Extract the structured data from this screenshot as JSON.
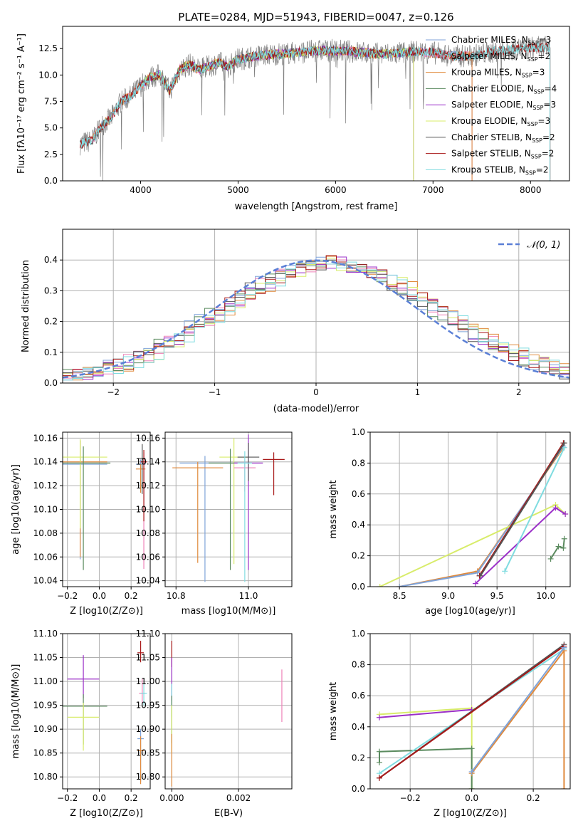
{
  "title": "PLATE=0284, MJD=51943, FIBERID=0047, z=0.126",
  "colors": {
    "chabrier_miles": "#7fa3d9",
    "salpeter_miles": "#ee82b8",
    "kroupa_miles": "#e08a3c",
    "chabrier_elodie": "#5a8a5e",
    "salpeter_elodie": "#9b2fc8",
    "kroupa_elodie": "#d8ec6a",
    "chabrier_stelib": "#555555",
    "salpeter_stelib": "#a81818",
    "kroupa_stelib": "#7fdce0",
    "normal": "#5a7fd6",
    "grid": "#b0b0b0"
  },
  "chart_data": [
    {
      "id": "spectrum",
      "type": "line",
      "title": "PLATE=0284, MJD=51943, FIBERID=0047, z=0.126",
      "xlabel": "wavelength [Angstrom, rest frame]",
      "ylabel": "Flux [f_λ10^-17 erg cm^-2 s^-1 A^-1]",
      "xlim": [
        3200,
        8400
      ],
      "ylim": [
        0,
        14.6
      ],
      "xticks": [
        "4000",
        "5000",
        "6000",
        "7000",
        "8000"
      ],
      "yticks": [
        "0.0",
        "2.5",
        "5.0",
        "7.5",
        "10.0",
        "12.5"
      ],
      "grid": false,
      "legend_position": "right",
      "data_curve": {
        "x": [
          3380,
          3500,
          3600,
          3700,
          3800,
          3900,
          4000,
          4100,
          4200,
          4300,
          4400,
          4500,
          4600,
          4700,
          4800,
          4900,
          5000,
          5200,
          5400,
          5600,
          5800,
          6000,
          6200,
          6400,
          6600,
          6800,
          7000,
          7200,
          7400,
          7600,
          7800,
          8000,
          8200
        ],
        "y": [
          3.5,
          3.8,
          5.2,
          6.0,
          7.5,
          8.0,
          9.0,
          9.8,
          10.0,
          8.5,
          10.5,
          11.0,
          10.5,
          10.8,
          11.2,
          10.8,
          11.5,
          11.8,
          12.0,
          12.1,
          12.3,
          12.3,
          12.2,
          12.0,
          12.0,
          12.2,
          12.1,
          11.8,
          11.8,
          12.2,
          12.4,
          12.6,
          12.6
        ]
      },
      "legend": [
        "Chabrier MILES, N_SSP=3",
        "Salpeter MILES, N_SSP=2",
        "Kroupa MILES, N_SSP=3",
        "Chabrier ELODIE, N_SSP=4",
        "Salpeter ELODIE, N_SSP=3",
        "Kroupa ELODIE, N_SSP=3",
        "Chabrier STELIB, N_SSP=2",
        "Salpeter STELIB, N_SSP=2",
        "Kroupa STELIB, N_SSP=2"
      ]
    },
    {
      "id": "residuals",
      "type": "line",
      "xlabel": "(data-model)/error",
      "ylabel": "Normed distribution",
      "xlim": [
        -2.5,
        2.5
      ],
      "ylim": [
        0,
        0.5
      ],
      "xticks": [
        "−2",
        "−1",
        "0",
        "1",
        "2"
      ],
      "yticks": [
        "0.0",
        "0.1",
        "0.2",
        "0.3",
        "0.4"
      ],
      "grid": true,
      "legend_label": "N(0,1)",
      "legend_position": "top-right"
    },
    {
      "id": "age_vs_z",
      "type": "scatter",
      "xlabel": "Z [log10(Z/Z⊙)]",
      "ylabel": "age [log10(age/yr)]",
      "xlim": [
        -0.23,
        0.32
      ],
      "ylim": [
        10.035,
        10.165
      ],
      "xticks": [
        "−0.2",
        "0.0",
        "0.2"
      ],
      "yticks": [
        "10.04",
        "10.06",
        "10.08",
        "10.10",
        "10.12",
        "10.14",
        "10.16"
      ],
      "grid": true,
      "points": [
        {
          "x": -0.12,
          "y": 10.138,
          "xerr": 0.17,
          "yerr_lo": 0.08,
          "yerr_hi": 0.02,
          "color": "chabrier_miles"
        },
        {
          "x": -0.12,
          "y": 10.14,
          "xerr": 0.17,
          "yerr_lo": 0.08,
          "yerr_hi": 0.018,
          "color": "kroupa_miles"
        },
        {
          "x": -0.12,
          "y": 10.144,
          "xerr": 0.17,
          "yerr_lo": 0.06,
          "yerr_hi": 0.015,
          "color": "kroupa_elodie"
        },
        {
          "x": -0.1,
          "y": 10.139,
          "xerr": 0.17,
          "yerr_lo": 0.09,
          "yerr_hi": 0.014,
          "color": "chabrier_elodie"
        },
        {
          "x": 0.26,
          "y": 10.138,
          "xerr": 0.03,
          "yerr_lo": 0.02,
          "yerr_hi": 0.004,
          "color": "chabrier_miles"
        },
        {
          "x": 0.26,
          "y": 10.134,
          "xerr": 0.03,
          "yerr_lo": 0.02,
          "yerr_hi": 0.004,
          "color": "kroupa_miles"
        },
        {
          "x": 0.28,
          "y": 10.14,
          "xerr": 0.02,
          "yerr_lo": 0.09,
          "yerr_hi": 0.008,
          "color": "salpeter_miles"
        },
        {
          "x": 0.28,
          "y": 10.14,
          "xerr": 0.02,
          "yerr_lo": 0.05,
          "yerr_hi": 0.01,
          "color": "salpeter_stelib"
        },
        {
          "x": 0.27,
          "y": 10.143,
          "xerr": 0.02,
          "yerr_lo": 0.03,
          "yerr_hi": 0.012,
          "color": "chabrier_stelib"
        }
      ]
    },
    {
      "id": "age_vs_mass",
      "type": "scatter",
      "xlabel": "mass [log10(M/M⊙)]",
      "xlim": [
        10.77,
        11.12
      ],
      "ylim": [
        10.035,
        10.165
      ],
      "xticks": [
        "10.8",
        "11.0"
      ],
      "yticks": [
        "10.04",
        "10.06",
        "10.08",
        "10.10",
        "10.12",
        "10.14",
        "10.16"
      ],
      "grid": true,
      "points": [
        {
          "x": 10.88,
          "y": 10.139,
          "xerr": 0.07,
          "yerr_lo": 0.1,
          "yerr_hi": 0.006,
          "color": "chabrier_miles"
        },
        {
          "x": 10.86,
          "y": 10.135,
          "xerr": 0.07,
          "yerr_lo": 0.08,
          "yerr_hi": 0.005,
          "color": "kroupa_miles"
        },
        {
          "x": 10.96,
          "y": 10.144,
          "xerr": 0.04,
          "yerr_lo": 0.09,
          "yerr_hi": 0.016,
          "color": "kroupa_elodie"
        },
        {
          "x": 10.95,
          "y": 10.139,
          "xerr": 0.06,
          "yerr_lo": 0.09,
          "yerr_hi": 0.012,
          "color": "chabrier_elodie"
        },
        {
          "x": 11.0,
          "y": 10.139,
          "xerr": 0.04,
          "yerr_lo": 0.09,
          "yerr_hi": 0.024,
          "color": "salpeter_elodie"
        },
        {
          "x": 10.99,
          "y": 10.135,
          "xerr": 0.03,
          "yerr_lo": 0.02,
          "yerr_hi": 0.006,
          "color": "salpeter_miles"
        },
        {
          "x": 11.0,
          "y": 10.144,
          "xerr": 0.03,
          "yerr_lo": 0.02,
          "yerr_hi": 0.012,
          "color": "chabrier_stelib"
        },
        {
          "x": 11.07,
          "y": 10.142,
          "xerr": 0.03,
          "yerr_lo": 0.03,
          "yerr_hi": 0.006,
          "color": "salpeter_stelib"
        },
        {
          "x": 10.99,
          "y": 10.139,
          "xerr": 0.02,
          "yerr_lo": 0.1,
          "yerr_hi": 0.01,
          "color": "kroupa_stelib"
        }
      ]
    },
    {
      "id": "weight_vs_age",
      "type": "line",
      "xlabel": "age [log10(age/yr)]",
      "ylabel": "mass weight",
      "xlim": [
        8.2,
        10.25
      ],
      "ylim": [
        0,
        1
      ],
      "xticks": [
        "8.5",
        "9.0",
        "9.5",
        "10.0"
      ],
      "yticks": [
        "0.0",
        "0.2",
        "0.4",
        "0.6",
        "0.8",
        "1.0"
      ],
      "grid": true,
      "series": [
        {
          "color": "kroupa_miles",
          "x": [
            8.5,
            9.3,
            10.18
          ],
          "y": [
            0.0,
            0.1,
            0.9
          ]
        },
        {
          "color": "chabrier_miles",
          "x": [
            8.5,
            9.3,
            10.18
          ],
          "y": [
            0.0,
            0.09,
            0.91
          ]
        },
        {
          "color": "kroupa_elodie",
          "x": [
            8.3,
            10.1,
            10.2
          ],
          "y": [
            0.0,
            0.53,
            0.47
          ]
        },
        {
          "color": "salpeter_elodie",
          "x": [
            9.28,
            10.1,
            10.2
          ],
          "y": [
            0.02,
            0.51,
            0.47
          ]
        },
        {
          "color": "kroupa_stelib",
          "x": [
            9.58,
            10.19
          ],
          "y": [
            0.1,
            0.9
          ]
        },
        {
          "color": "salpeter_stelib",
          "x": [
            9.32,
            10.18
          ],
          "y": [
            0.07,
            0.93
          ]
        },
        {
          "color": "chabrier_stelib",
          "x": [
            9.33,
            10.19
          ],
          "y": [
            0.07,
            0.93
          ]
        },
        {
          "color": "chabrier_elodie",
          "x": [
            10.05,
            10.13,
            10.18,
            10.19
          ],
          "y": [
            0.18,
            0.26,
            0.25,
            0.31
          ]
        }
      ]
    },
    {
      "id": "mass_vs_z",
      "type": "scatter",
      "xlabel": "Z [log10(Z/Z⊙)]",
      "ylabel": "mass [log10(M/M⊙)]",
      "xlim": [
        -0.23,
        0.32
      ],
      "ylim": [
        10.775,
        11.1
      ],
      "xticks": [
        "−0.2",
        "0.0",
        "0.2"
      ],
      "yticks": [
        "10.80",
        "10.85",
        "10.90",
        "10.95",
        "11.00",
        "11.05",
        "11.10"
      ],
      "grid": true,
      "points": [
        {
          "x": -0.1,
          "y": 11.005,
          "xerr": 0.1,
          "yerr_lo": 0.04,
          "yerr_hi": 0.05,
          "color": "salpeter_elodie"
        },
        {
          "x": -0.1,
          "y": 10.948,
          "xerr": 0.15,
          "yerr_lo": 0.08,
          "yerr_hi": 0.025,
          "color": "chabrier_elodie"
        },
        {
          "x": -0.1,
          "y": 10.925,
          "xerr": 0.1,
          "yerr_lo": 0.07,
          "yerr_hi": 0.03,
          "color": "kroupa_elodie"
        },
        {
          "x": 0.26,
          "y": 11.06,
          "xerr": 0.02,
          "yerr_lo": 0.02,
          "yerr_hi": 0.025,
          "color": "salpeter_stelib"
        },
        {
          "x": 0.27,
          "y": 10.975,
          "xerr": 0.02,
          "yerr_lo": 0.02,
          "yerr_hi": 0.03,
          "color": "salpeter_miles"
        },
        {
          "x": 0.28,
          "y": 10.975,
          "xerr": 0.02,
          "yerr_lo": 0.025,
          "yerr_hi": 0.02,
          "color": "kroupa_stelib"
        },
        {
          "x": 0.26,
          "y": 10.88,
          "xerr": 0.02,
          "yerr_lo": 0.09,
          "yerr_hi": 0.02,
          "color": "chabrier_miles"
        },
        {
          "x": 0.26,
          "y": 10.855,
          "xerr": 0.02,
          "yerr_lo": 0.07,
          "yerr_hi": 0.03,
          "color": "kroupa_miles"
        }
      ]
    },
    {
      "id": "mass_vs_ebv",
      "type": "scatter",
      "xlabel": "E(B-V)",
      "xlim": [
        -0.0002,
        0.0036
      ],
      "ylim": [
        10.775,
        11.1
      ],
      "xticks": [
        "0.000",
        "0.002"
      ],
      "yticks": [
        "10.80",
        "10.85",
        "10.90",
        "10.95",
        "11.00",
        "11.05",
        "11.10"
      ],
      "grid": true,
      "points": [
        {
          "x": 0.0,
          "y": 11.06,
          "yerr_lo": 0.03,
          "yerr_hi": 0.025,
          "color": "salpeter_stelib"
        },
        {
          "x": 0.0,
          "y": 11.0,
          "yerr_lo": 0.04,
          "yerr_hi": 0.05,
          "color": "salpeter_elodie"
        },
        {
          "x": 0.0,
          "y": 10.975,
          "yerr_lo": 0.05,
          "yerr_hi": 0.02,
          "color": "kroupa_stelib"
        },
        {
          "x": 0.0,
          "y": 10.95,
          "yerr_lo": 0.08,
          "yerr_hi": 0.02,
          "color": "chabrier_elodie"
        },
        {
          "x": 0.0,
          "y": 10.92,
          "yerr_lo": 0.07,
          "yerr_hi": 0.03,
          "color": "kroupa_elodie"
        },
        {
          "x": 0.0,
          "y": 10.86,
          "yerr_lo": 0.08,
          "yerr_hi": 0.03,
          "color": "kroupa_miles"
        },
        {
          "x": 0.0033,
          "y": 10.97,
          "yerr_lo": 0.055,
          "yerr_hi": 0.055,
          "color": "salpeter_miles"
        }
      ]
    },
    {
      "id": "weight_vs_z",
      "type": "line",
      "xlabel": "Z [log10(Z/Z⊙)]",
      "ylabel": "mass weight",
      "xlim": [
        -0.33,
        0.32
      ],
      "ylim": [
        0,
        1
      ],
      "xticks": [
        "−0.2",
        "0.0",
        "0.2"
      ],
      "yticks": [
        "0.0",
        "0.2",
        "0.4",
        "0.6",
        "0.8",
        "1.0"
      ],
      "grid": true,
      "series": [
        {
          "color": "kroupa_elodie",
          "x": [
            -0.3,
            0.0,
            0.0
          ],
          "y": [
            0.48,
            0.52,
            0.0
          ]
        },
        {
          "color": "salpeter_elodie",
          "x": [
            -0.3,
            0.0
          ],
          "y": [
            0.46,
            0.51
          ]
        },
        {
          "color": "chabrier_elodie",
          "x": [
            -0.3,
            -0.3,
            0.0,
            0.0
          ],
          "y": [
            0.17,
            0.24,
            0.26,
            0.0
          ]
        },
        {
          "color": "kroupa_stelib",
          "x": [
            -0.3,
            0.3
          ],
          "y": [
            0.1,
            0.9
          ]
        },
        {
          "color": "chabrier_stelib",
          "x": [
            -0.3,
            0.3
          ],
          "y": [
            0.07,
            0.93
          ]
        },
        {
          "color": "salpeter_stelib",
          "x": [
            -0.3,
            0.3
          ],
          "y": [
            0.07,
            0.92
          ]
        },
        {
          "color": "kroupa_miles",
          "x": [
            0.0,
            0.3,
            0.3
          ],
          "y": [
            0.1,
            0.89,
            0.0
          ]
        },
        {
          "color": "chabrier_miles",
          "x": [
            0.0,
            0.3
          ],
          "y": [
            0.11,
            0.91
          ]
        }
      ]
    }
  ]
}
